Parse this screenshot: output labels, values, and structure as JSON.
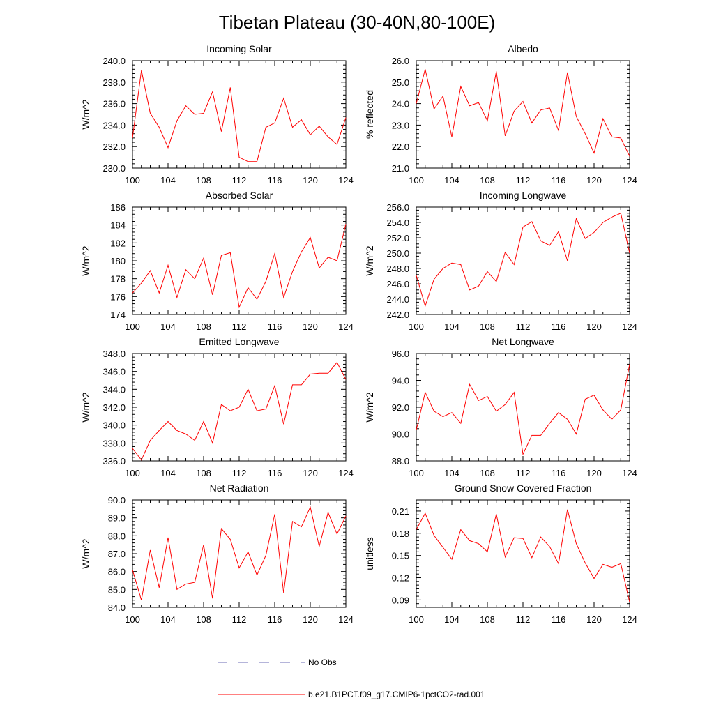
{
  "figure": {
    "title": "Tibetan Plateau (30-40N,80-100E)",
    "series_color": "#ff0000",
    "obs_color": "#6b6bb5"
  },
  "legend": {
    "entries": [
      {
        "label": "No Obs",
        "style": "dashed",
        "color": "#6b6bb5"
      },
      {
        "label": "b.e21.B1PCT.f09_g17.CMIP6-1pctCO2-rad.001",
        "style": "solid",
        "color": "#ff0000"
      }
    ]
  },
  "chart_data": [
    {
      "type": "line",
      "title": "Incoming Solar",
      "xlabel": "",
      "ylabel": "W/m^2",
      "xlim": [
        100,
        124
      ],
      "ylim": [
        230,
        240
      ],
      "xticks": [
        "100",
        "104",
        "108",
        "112",
        "116",
        "120",
        "124"
      ],
      "yticks": [
        "230.0",
        "232.0",
        "234.0",
        "236.0",
        "238.0",
        "240.0"
      ],
      "x": [
        100,
        101,
        102,
        103,
        104,
        105,
        106,
        107,
        108,
        109,
        110,
        111,
        112,
        113,
        114,
        115,
        116,
        117,
        118,
        119,
        120,
        121,
        122,
        123,
        124
      ],
      "series": [
        {
          "name": "b.e21.B1PCT.f09_g17.CMIP6-1pctCO2-rad.001",
          "values": [
            232.8,
            239.1,
            235.1,
            233.8,
            231.9,
            234.4,
            235.8,
            235.0,
            235.1,
            237.1,
            233.4,
            237.5,
            231.0,
            230.6,
            230.6,
            233.8,
            234.2,
            236.5,
            233.8,
            234.5,
            233.1,
            233.9,
            232.9,
            232.2,
            234.7
          ]
        }
      ]
    },
    {
      "type": "line",
      "title": "Albedo",
      "xlabel": "",
      "ylabel": "% reflected",
      "xlim": [
        100,
        124
      ],
      "ylim": [
        21,
        26
      ],
      "xticks": [
        "100",
        "104",
        "108",
        "112",
        "116",
        "120",
        "124"
      ],
      "yticks": [
        "21.0",
        "22.0",
        "23.0",
        "24.0",
        "25.0",
        "26.0"
      ],
      "x": [
        100,
        101,
        102,
        103,
        104,
        105,
        106,
        107,
        108,
        109,
        110,
        111,
        112,
        113,
        114,
        115,
        116,
        117,
        118,
        119,
        120,
        121,
        122,
        123,
        124
      ],
      "series": [
        {
          "name": "b.e21.B1PCT.f09_g17.CMIP6-1pctCO2-rad.001",
          "values": [
            24.0,
            25.6,
            23.75,
            24.35,
            22.45,
            24.8,
            23.9,
            24.05,
            23.2,
            25.5,
            22.5,
            23.65,
            24.1,
            23.1,
            23.7,
            23.8,
            22.75,
            25.45,
            23.4,
            22.6,
            21.7,
            23.3,
            22.45,
            22.4,
            21.55
          ]
        }
      ]
    },
    {
      "type": "line",
      "title": "Absorbed Solar",
      "xlabel": "",
      "ylabel": "W/m^2",
      "xlim": [
        100,
        124
      ],
      "ylim": [
        174,
        186
      ],
      "xticks": [
        "100",
        "104",
        "108",
        "112",
        "116",
        "120",
        "124"
      ],
      "yticks": [
        "174",
        "176",
        "178",
        "180",
        "182",
        "184",
        "186"
      ],
      "x": [
        100,
        101,
        102,
        103,
        104,
        105,
        106,
        107,
        108,
        109,
        110,
        111,
        112,
        113,
        114,
        115,
        116,
        117,
        118,
        119,
        120,
        121,
        122,
        123,
        124
      ],
      "series": [
        {
          "name": "b.e21.B1PCT.f09_g17.CMIP6-1pctCO2-rad.001",
          "values": [
            176.4,
            177.5,
            178.9,
            176.4,
            179.5,
            175.9,
            179.0,
            178.0,
            180.3,
            176.2,
            180.6,
            180.9,
            174.8,
            177.0,
            175.7,
            177.7,
            180.8,
            175.9,
            178.8,
            181.0,
            182.6,
            179.2,
            180.4,
            180.0,
            184.1
          ]
        }
      ]
    },
    {
      "type": "line",
      "title": "Incoming Longwave",
      "xlabel": "",
      "ylabel": "W/m^2",
      "xlim": [
        100,
        124
      ],
      "ylim": [
        242,
        256
      ],
      "xticks": [
        "100",
        "104",
        "108",
        "112",
        "116",
        "120",
        "124"
      ],
      "yticks": [
        "242.0",
        "244.0",
        "246.0",
        "248.0",
        "250.0",
        "252.0",
        "254.0",
        "256.0"
      ],
      "x": [
        100,
        101,
        102,
        103,
        104,
        105,
        106,
        107,
        108,
        109,
        110,
        111,
        112,
        113,
        114,
        115,
        116,
        117,
        118,
        119,
        120,
        121,
        122,
        123,
        124
      ],
      "series": [
        {
          "name": "b.e21.B1PCT.f09_g17.CMIP6-1pctCO2-rad.001",
          "values": [
            247.1,
            243.1,
            246.6,
            248.0,
            248.7,
            248.5,
            245.2,
            245.7,
            247.6,
            246.3,
            250.1,
            248.5,
            253.4,
            254.1,
            251.6,
            251.0,
            252.8,
            249.0,
            254.5,
            251.9,
            252.7,
            254.0,
            254.7,
            255.2,
            250.0
          ]
        }
      ]
    },
    {
      "type": "line",
      "title": "Emitted Longwave",
      "xlabel": "",
      "ylabel": "W/m^2",
      "xlim": [
        100,
        124
      ],
      "ylim": [
        336,
        348
      ],
      "xticks": [
        "100",
        "104",
        "108",
        "112",
        "116",
        "120",
        "124"
      ],
      "yticks": [
        "336.0",
        "338.0",
        "340.0",
        "342.0",
        "344.0",
        "346.0",
        "348.0"
      ],
      "x": [
        100,
        101,
        102,
        103,
        104,
        105,
        106,
        107,
        108,
        109,
        110,
        111,
        112,
        113,
        114,
        115,
        116,
        117,
        118,
        119,
        120,
        121,
        122,
        123,
        124
      ],
      "series": [
        {
          "name": "b.e21.B1PCT.f09_g17.CMIP6-1pctCO2-rad.001",
          "values": [
            337.4,
            336.1,
            338.3,
            339.4,
            340.4,
            339.4,
            339.0,
            338.3,
            340.4,
            338.0,
            342.3,
            341.6,
            342.0,
            344.0,
            341.6,
            341.8,
            344.4,
            340.1,
            344.5,
            344.5,
            345.7,
            345.8,
            345.8,
            347.0,
            345.1
          ]
        }
      ]
    },
    {
      "type": "line",
      "title": "Net Longwave",
      "xlabel": "",
      "ylabel": "W/m^2",
      "xlim": [
        100,
        124
      ],
      "ylim": [
        88,
        96
      ],
      "xticks": [
        "100",
        "104",
        "108",
        "112",
        "116",
        "120",
        "124"
      ],
      "yticks": [
        "88.0",
        "90.0",
        "92.0",
        "94.0",
        "96.0"
      ],
      "x": [
        100,
        101,
        102,
        103,
        104,
        105,
        106,
        107,
        108,
        109,
        110,
        111,
        112,
        113,
        114,
        115,
        116,
        117,
        118,
        119,
        120,
        121,
        122,
        123,
        124
      ],
      "series": [
        {
          "name": "b.e21.B1PCT.f09_g17.CMIP6-1pctCO2-rad.001",
          "values": [
            90.3,
            93.1,
            91.7,
            91.3,
            91.6,
            90.8,
            93.7,
            92.5,
            92.8,
            91.7,
            92.2,
            93.1,
            88.5,
            89.9,
            89.9,
            90.8,
            91.6,
            91.1,
            90.0,
            92.6,
            92.9,
            91.8,
            91.1,
            91.8,
            95.2
          ]
        }
      ]
    },
    {
      "type": "line",
      "title": "Net Radiation",
      "xlabel": "",
      "ylabel": "W/m^2",
      "xlim": [
        100,
        124
      ],
      "ylim": [
        84,
        90
      ],
      "xticks": [
        "100",
        "104",
        "108",
        "112",
        "116",
        "120",
        "124"
      ],
      "yticks": [
        "84.0",
        "85.0",
        "86.0",
        "87.0",
        "88.0",
        "89.0",
        "90.0"
      ],
      "x": [
        100,
        101,
        102,
        103,
        104,
        105,
        106,
        107,
        108,
        109,
        110,
        111,
        112,
        113,
        114,
        115,
        116,
        117,
        118,
        119,
        120,
        121,
        122,
        123,
        124
      ],
      "series": [
        {
          "name": "b.e21.B1PCT.f09_g17.CMIP6-1pctCO2-rad.001",
          "values": [
            86.1,
            84.4,
            87.2,
            85.1,
            87.9,
            85.0,
            85.3,
            85.4,
            87.5,
            84.5,
            88.4,
            87.8,
            86.2,
            87.1,
            85.8,
            86.9,
            89.2,
            84.8,
            88.8,
            88.5,
            89.6,
            87.4,
            89.3,
            88.1,
            89.1
          ]
        }
      ]
    },
    {
      "type": "line",
      "title": "Ground Snow Covered Fraction",
      "xlabel": "",
      "ylabel": "unitless",
      "xlim": [
        100,
        124
      ],
      "ylim": [
        0.08,
        0.225
      ],
      "xticks": [
        "100",
        "104",
        "108",
        "112",
        "116",
        "120",
        "124"
      ],
      "yticks": [
        "0.09",
        "0.12",
        "0.15",
        "0.18",
        "0.21"
      ],
      "x": [
        100,
        101,
        102,
        103,
        104,
        105,
        106,
        107,
        108,
        109,
        110,
        111,
        112,
        113,
        114,
        115,
        116,
        117,
        118,
        119,
        120,
        121,
        122,
        123,
        124
      ],
      "series": [
        {
          "name": "b.e21.B1PCT.f09_g17.CMIP6-1pctCO2-rad.001",
          "values": [
            0.185,
            0.207,
            0.177,
            0.161,
            0.145,
            0.185,
            0.17,
            0.166,
            0.155,
            0.206,
            0.148,
            0.174,
            0.173,
            0.147,
            0.175,
            0.162,
            0.139,
            0.212,
            0.166,
            0.14,
            0.119,
            0.138,
            0.134,
            0.139,
            0.087
          ]
        }
      ]
    }
  ]
}
